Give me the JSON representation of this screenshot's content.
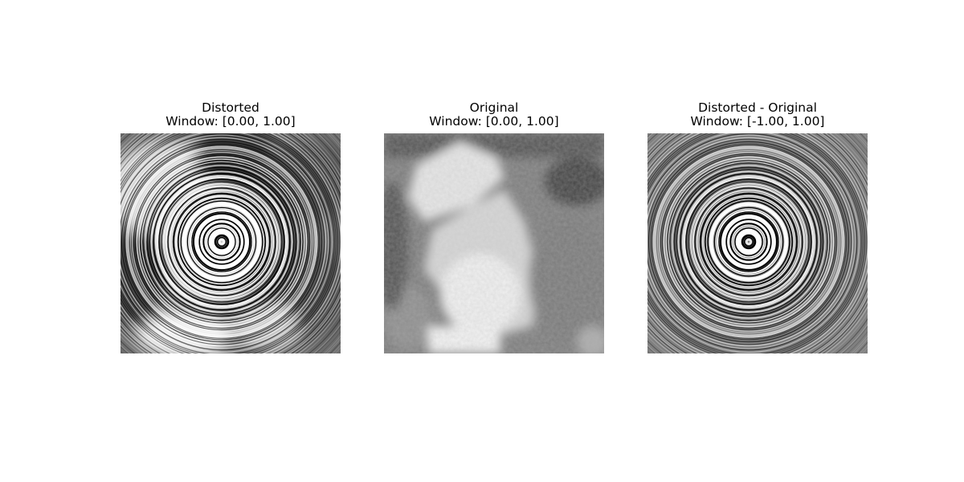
{
  "panels": [
    {
      "title": "Distorted",
      "window": "Window: [0.00, 1.00]",
      "type": "distorted"
    },
    {
      "title": "Original",
      "window": "Window: [0.00, 1.00]",
      "type": "original"
    },
    {
      "title": "Distorted - Original",
      "window": "Window: [-1.00, 1.00]",
      "type": "difference"
    }
  ],
  "colormap": "gray"
}
